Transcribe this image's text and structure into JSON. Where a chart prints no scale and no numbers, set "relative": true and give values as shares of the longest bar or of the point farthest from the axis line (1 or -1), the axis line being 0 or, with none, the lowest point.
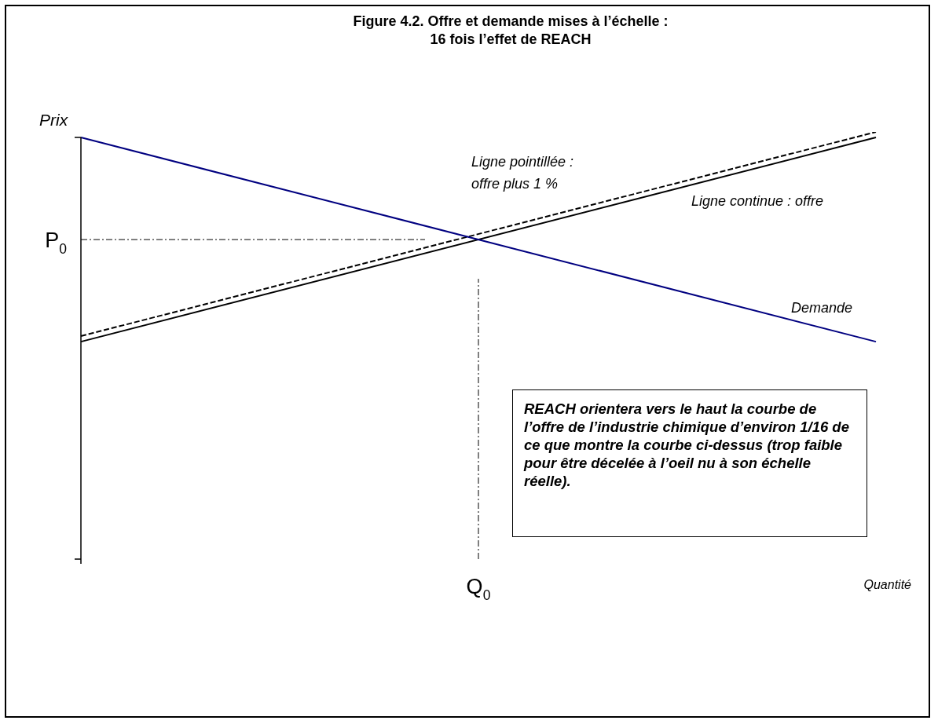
{
  "chart_data": {
    "type": "line",
    "title": "Figure 4.2. Offre et demande mises à l’échelle : 16 fois l’effet de REACH",
    "xlabel": "Quantité",
    "ylabel": "Prix",
    "relative": true,
    "categories": [
      null,
      null
    ],
    "marker": "none",
    "series": [
      {
        "name": "Demande",
        "color": "#000080",
        "values": [
          0.987,
          0.509
        ],
        "line_style": "solid"
      },
      {
        "name": "Ligne continue : offre",
        "color": "#000000",
        "values": [
          0.509,
          0.987
        ],
        "line_style": "solid"
      },
      {
        "name": "Ligne pointillée : offre plus 1 %",
        "color": "#000000",
        "values": [
          0.522,
          1.0
        ],
        "line_style": "dashed"
      }
    ],
    "annotations": [
      "P$_{0}$",
      "Q$_{0}$",
      "REACH orientera vers le haut la courbe de l’offre de l’industrie chimique d’environ 1/16 de ce que montre la courbe ci-dessus (trop faible pour être décelée à l’oeil nu à son échelle réelle)."
    ]
  }
}
